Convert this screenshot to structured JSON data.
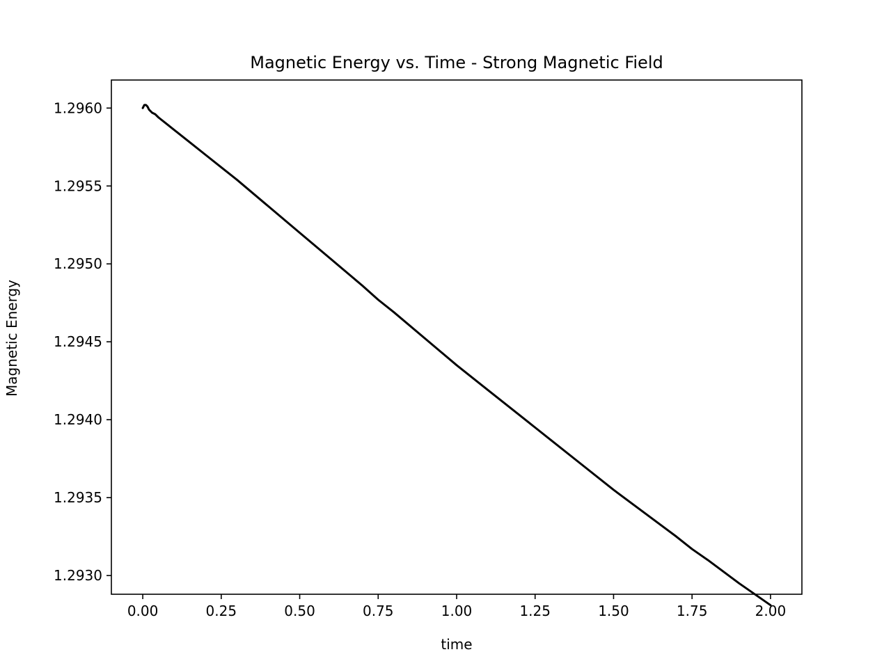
{
  "chart_data": {
    "type": "line",
    "title": "Magnetic Energy vs. Time - Strong Magnetic Field",
    "xlabel": "time",
    "ylabel": "Magnetic Energy",
    "xlim": [
      -0.1,
      2.1
    ],
    "ylim": [
      1.29288,
      1.29618
    ],
    "xticks": [
      "0.00",
      "0.25",
      "0.50",
      "0.75",
      "1.00",
      "1.25",
      "1.50",
      "1.75",
      "2.00"
    ],
    "xtick_values": [
      0,
      0.25,
      0.5,
      0.75,
      1.0,
      1.25,
      1.5,
      1.75,
      2.0
    ],
    "yticks": [
      "1.2930",
      "1.2935",
      "1.2940",
      "1.2945",
      "1.2950",
      "1.2955",
      "1.2960"
    ],
    "ytick_values": [
      1.293,
      1.2935,
      1.294,
      1.2945,
      1.295,
      1.2955,
      1.296
    ],
    "grid": false,
    "series": [
      {
        "color": "#000000",
        "x": [
          0.0,
          0.005,
          0.01,
          0.015,
          0.02,
          0.03,
          0.04,
          0.05,
          0.075,
          0.1,
          0.15,
          0.2,
          0.25,
          0.3,
          0.4,
          0.5,
          0.6,
          0.7,
          0.75,
          0.8,
          0.9,
          1.0,
          1.1,
          1.2,
          1.25,
          1.3,
          1.4,
          1.5,
          1.6,
          1.7,
          1.75,
          1.8,
          1.9,
          2.0
        ],
        "y": [
          1.296,
          1.29602,
          1.29602,
          1.29601,
          1.29599,
          1.29597,
          1.29596,
          1.29594,
          1.2959,
          1.29586,
          1.29578,
          1.2957,
          1.29562,
          1.29554,
          1.29537,
          1.2952,
          1.29503,
          1.29486,
          1.29477,
          1.29469,
          1.29452,
          1.29435,
          1.29419,
          1.29403,
          1.29395,
          1.29387,
          1.29371,
          1.29355,
          1.2934,
          1.29325,
          1.29317,
          1.2931,
          1.29295,
          1.29281
        ]
      }
    ]
  }
}
